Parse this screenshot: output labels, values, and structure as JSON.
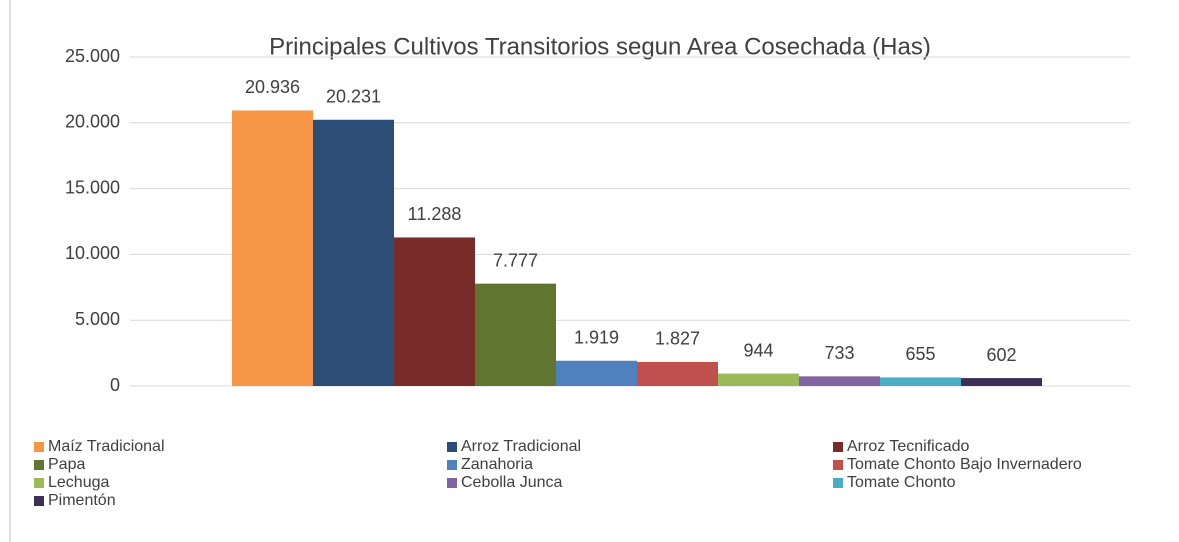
{
  "chart_data": {
    "type": "bar",
    "title": "Principales  Cultivos Transitorios segun Area Cosechada (Has)",
    "categories": [
      null
    ],
    "series": [
      {
        "name": "Maíz Tradicional",
        "color": "#f79646",
        "values": [
          20936
        ],
        "value_labels": [
          "20.936"
        ]
      },
      {
        "name": "Arroz Tradicional",
        "color": "#2c4d75",
        "values": [
          20231
        ],
        "value_labels": [
          "20.231"
        ]
      },
      {
        "name": "Arroz Tecnificado",
        "color": "#772c2a",
        "values": [
          11288
        ],
        "value_labels": [
          "11.288"
        ]
      },
      {
        "name": "Papa",
        "color": "#5f7530",
        "values": [
          7777
        ],
        "value_labels": [
          "7.777"
        ]
      },
      {
        "name": "Zanahoria",
        "color": "#4f81bd",
        "values": [
          1919
        ],
        "value_labels": [
          "1.919"
        ]
      },
      {
        "name": "Tomate Chonto Bajo Invernadero",
        "color": "#c0504d",
        "values": [
          1827
        ],
        "value_labels": [
          "1.827"
        ]
      },
      {
        "name": "Lechuga",
        "color": "#9bbb59",
        "values": [
          944
        ]
      },
      {
        "name": "Cebolla Junca",
        "color": "#8064a2",
        "values": [
          733
        ]
      },
      {
        "name": "Tomate Chonto",
        "color": "#4bacc6",
        "values": [
          655
        ]
      },
      {
        "name": "Pimentón",
        "color": "#3e2f55",
        "values": [
          602
        ]
      }
    ],
    "ylim": [
      0,
      25000
    ],
    "yticks": [
      0,
      {
        "value": 5000,
        "label": "5.000"
      },
      {
        "value": 10000,
        "label": "10.000"
      },
      {
        "value": 15000,
        "label": "15.000"
      },
      {
        "value": 20000,
        "label": "20.000"
      },
      {
        "value": 25000,
        "label": "25.000"
      }
    ],
    "grid": true,
    "legend": "bottom"
  }
}
